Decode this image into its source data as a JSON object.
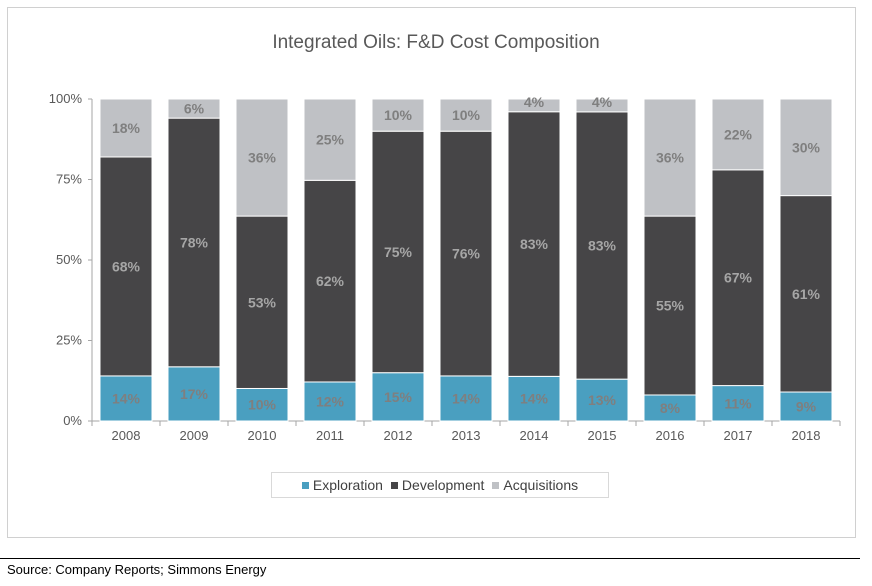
{
  "chart_data": {
    "type": "bar",
    "stacked": true,
    "title": "Integrated Oils: F&D Cost Composition",
    "categories": [
      "2008",
      "2009",
      "2010",
      "2011",
      "2012",
      "2013",
      "2014",
      "2015",
      "2016",
      "2017",
      "2018"
    ],
    "series": [
      {
        "name": "Exploration",
        "color": "#4a9fc0",
        "label_color": "#7f7f7f",
        "values": [
          14,
          17,
          10,
          12,
          15,
          14,
          14,
          13,
          8,
          11,
          9
        ]
      },
      {
        "name": "Development",
        "color": "#464547",
        "label_color": "#a6a6a6",
        "values": [
          68,
          78,
          53,
          62,
          75,
          76,
          83,
          83,
          55,
          67,
          61
        ]
      },
      {
        "name": "Acquisitions",
        "color": "#bfc1c5",
        "label_color": "#7f7f7f",
        "values": [
          18,
          6,
          36,
          25,
          10,
          10,
          4,
          4,
          36,
          22,
          30
        ]
      }
    ],
    "ylim": [
      0,
      100
    ],
    "yticks": [
      "0%",
      "25%",
      "50%",
      "75%",
      "100%"
    ],
    "legend_position": "bottom",
    "grid": false
  },
  "source": "Source:  Company Reports; Simmons Energy"
}
